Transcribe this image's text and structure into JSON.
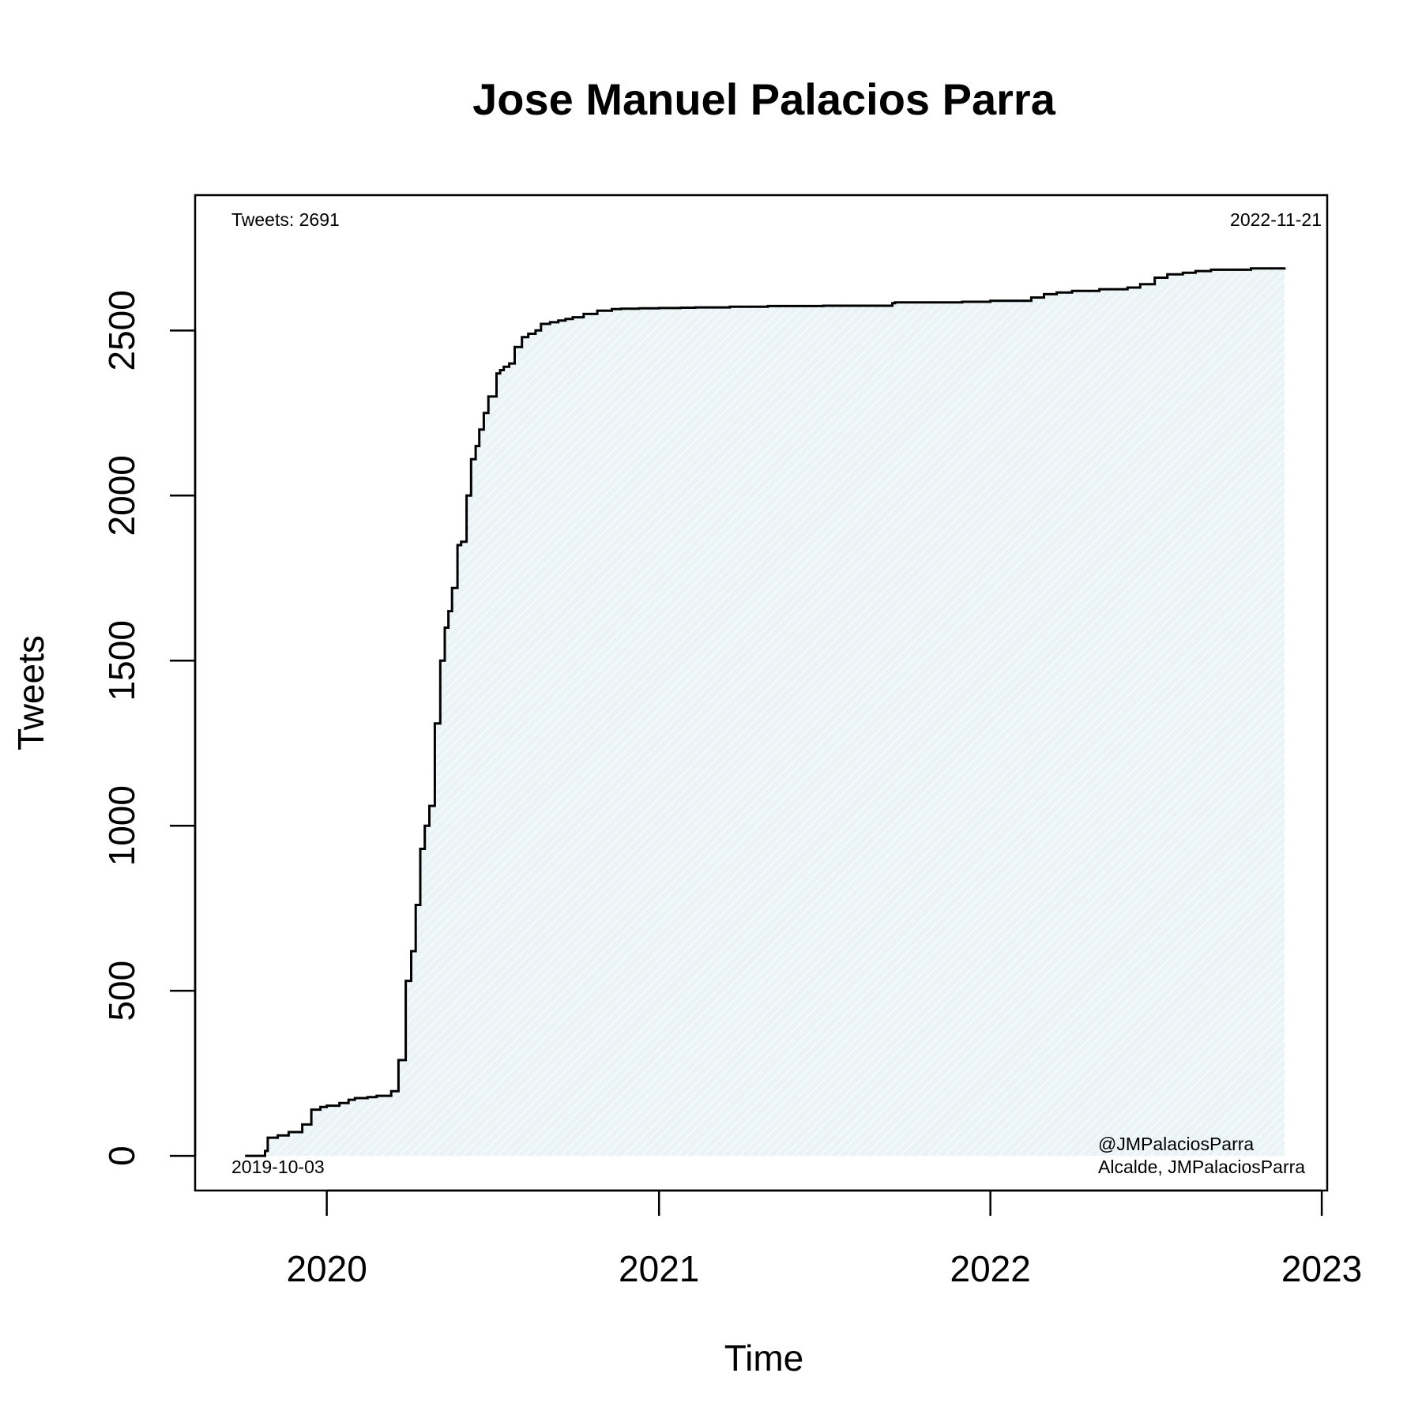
{
  "chart_data": {
    "type": "area",
    "title": "Jose Manuel Palacios Parra",
    "xlabel": "Time",
    "ylabel": "Tweets",
    "xlim": [
      "2019-08-09",
      "2023-01-07"
    ],
    "ylim": [
      -105,
      2910
    ],
    "x_ticks": [
      "2020-01-01",
      "2021-01-01",
      "2022-01-01",
      "2023-01-01"
    ],
    "x_tick_labels": [
      "2020",
      "2021",
      "2022",
      "2023"
    ],
    "y_ticks": [
      0,
      500,
      1000,
      1500,
      2000,
      2500
    ],
    "y_tick_labels": [
      "0",
      "500",
      "1000",
      "1500",
      "2000",
      "2500"
    ],
    "grid": false,
    "fill_color": "#eaf3f6",
    "line_color": "#000000",
    "annotations": {
      "top_left": "Tweets: 2691",
      "top_right": "2022-11-21",
      "bottom_left": "2019-10-03",
      "bottom_right_line1": "@JMPalaciosParra",
      "bottom_right_line2": "Alcalde, JMPalaciosParra"
    },
    "series": [
      {
        "x": [
          "2019-10-03",
          "2019-10-25",
          "2019-10-28",
          "2019-11-08",
          "2019-11-20",
          "2019-12-05",
          "2019-12-15",
          "2019-12-25",
          "2020-01-01",
          "2020-01-15",
          "2020-01-25",
          "2020-02-01",
          "2020-02-15",
          "2020-02-25",
          "2020-03-12",
          "2020-03-20",
          "2020-03-28",
          "2020-04-03",
          "2020-04-08",
          "2020-04-13",
          "2020-04-18",
          "2020-04-23",
          "2020-04-29",
          "2020-05-05",
          "2020-05-10",
          "2020-05-14",
          "2020-05-18",
          "2020-05-24",
          "2020-05-28",
          "2020-06-03",
          "2020-06-08",
          "2020-06-13",
          "2020-06-17",
          "2020-06-22",
          "2020-06-27",
          "2020-07-06",
          "2020-07-10",
          "2020-07-14",
          "2020-07-20",
          "2020-07-26",
          "2020-08-03",
          "2020-08-10",
          "2020-08-18",
          "2020-08-24",
          "2020-09-03",
          "2020-09-12",
          "2020-09-20",
          "2020-09-28",
          "2020-10-10",
          "2020-10-25",
          "2020-11-10",
          "2020-11-20",
          "2020-12-10",
          "2021-01-01",
          "2021-01-25",
          "2021-02-10",
          "2021-03-20",
          "2021-05-01",
          "2021-07-01",
          "2021-09-15",
          "2021-09-18",
          "2021-12-01",
          "2022-01-01",
          "2022-02-15",
          "2022-03-01",
          "2022-03-15",
          "2022-04-01",
          "2022-05-01",
          "2022-06-01",
          "2022-06-15",
          "2022-07-01",
          "2022-07-15",
          "2022-08-01",
          "2022-08-15",
          "2022-09-01",
          "2022-10-15",
          "2022-11-21"
        ],
        "y": [
          0,
          15,
          55,
          62,
          72,
          95,
          140,
          148,
          152,
          160,
          170,
          175,
          178,
          182,
          196,
          290,
          530,
          620,
          760,
          930,
          1000,
          1060,
          1310,
          1500,
          1600,
          1650,
          1720,
          1850,
          1860,
          2000,
          2110,
          2150,
          2200,
          2250,
          2300,
          2370,
          2380,
          2390,
          2400,
          2450,
          2480,
          2490,
          2500,
          2520,
          2525,
          2530,
          2535,
          2540,
          2550,
          2560,
          2565,
          2566,
          2567,
          2568,
          2569,
          2570,
          2572,
          2574,
          2575,
          2583,
          2585,
          2587,
          2590,
          2600,
          2610,
          2615,
          2620,
          2625,
          2630,
          2640,
          2660,
          2670,
          2675,
          2680,
          2684,
          2688,
          2691
        ]
      }
    ]
  }
}
